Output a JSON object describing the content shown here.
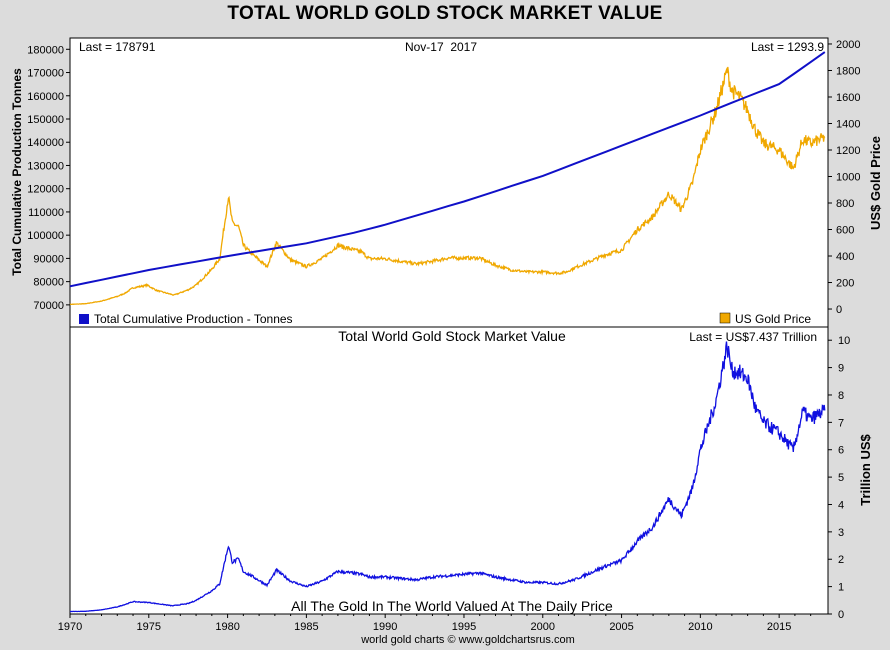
{
  "page": {
    "title": "TOTAL WORLD GOLD STOCK MARKET VALUE",
    "footer": "world gold charts © www.goldchartsrus.com"
  },
  "chart_data": [
    {
      "type": "line",
      "panel": "top",
      "date_label": "Nov-17  2017",
      "last_left": "Last = 178791",
      "last_right": "Last = 1293.9",
      "ylabel_left": "Total Cumulative Production Tonnes",
      "ylabel_right": "US$ Gold Price",
      "yticks_left": [
        70000,
        80000,
        90000,
        100000,
        110000,
        120000,
        130000,
        140000,
        150000,
        160000,
        170000,
        180000
      ],
      "yticks_right": [
        0,
        200,
        400,
        600,
        800,
        1000,
        1200,
        1400,
        1600,
        1800,
        2000
      ],
      "ylim_left": [
        66500,
        184000
      ],
      "ylim_right": [
        -30,
        2030
      ],
      "legend": [
        {
          "name": "Total Cumulative Production - Tonnes",
          "color": "#1010c8",
          "position": "bottom-left"
        },
        {
          "name": "US Gold Price",
          "color": "#f0a800",
          "position": "bottom-right"
        }
      ],
      "series": [
        {
          "name": "Total Cumulative Production - Tonnes",
          "axis": "left",
          "color": "#1010c8",
          "x": [
            1970,
            1975,
            1980,
            1985,
            1988,
            1990,
            1995,
            2000,
            2005,
            2010,
            2012,
            2015,
            2017.9
          ],
          "values": [
            78000,
            85000,
            91000,
            96500,
            101000,
            104500,
            114500,
            125500,
            138500,
            151500,
            157000,
            165000,
            178791
          ]
        },
        {
          "name": "US Gold Price",
          "axis": "right",
          "color": "#f0a800",
          "x": [
            1970,
            1971,
            1972,
            1973,
            1973.5,
            1974,
            1974.9,
            1975.5,
            1976.6,
            1977.5,
            1978,
            1979,
            1979.5,
            1980.05,
            1980.3,
            1980.7,
            1981,
            1981.5,
            1982.5,
            1983.1,
            1984,
            1985,
            1986,
            1987,
            1987.9,
            1988.5,
            1989,
            1990,
            1991,
            1992,
            1993,
            1994,
            1995,
            1996,
            1997,
            1998,
            1999,
            2000,
            2001,
            2001.5,
            2002,
            2003,
            2004,
            2005,
            2006,
            2007,
            2008,
            2008.8,
            2009.5,
            2010,
            2011,
            2011.7,
            2012,
            2012.5,
            2013,
            2013.5,
            2014,
            2015,
            2015.9,
            2016.5,
            2017,
            2017.9
          ],
          "values": [
            35,
            40,
            60,
            95,
            120,
            160,
            180,
            140,
            105,
            145,
            180,
            300,
            380,
            850,
            650,
            620,
            480,
            420,
            320,
            500,
            370,
            320,
            380,
            480,
            450,
            430,
            380,
            380,
            360,
            340,
            360,
            385,
            385,
            385,
            330,
            295,
            280,
            280,
            270,
            280,
            310,
            360,
            410,
            445,
            600,
            700,
            870,
            750,
            950,
            1200,
            1500,
            1800,
            1650,
            1600,
            1500,
            1350,
            1250,
            1200,
            1060,
            1280,
            1250,
            1293.9
          ]
        }
      ]
    },
    {
      "type": "line",
      "panel": "bottom",
      "title": "Total World Gold Stock Market Value",
      "last": "Last = US$7.437 Trillion",
      "caption": "All The Gold In The World Valued At The Daily Price",
      "ylabel_right": "Trillion US$",
      "yticks": [
        0,
        1,
        2,
        3,
        4,
        5,
        6,
        7,
        8,
        9,
        10
      ],
      "ylim": [
        0,
        10.3
      ],
      "xticks": [
        1970,
        1975,
        1980,
        1985,
        1990,
        1995,
        2000,
        2005,
        2010,
        2015
      ],
      "xlim": [
        1970,
        2018.1
      ],
      "series": [
        {
          "name": "Total World Gold Stock Market Value",
          "color": "#1010e0",
          "x": [
            1970,
            1971,
            1972,
            1973,
            1973.5,
            1974,
            1975,
            1976.5,
            1977.5,
            1978,
            1979,
            1979.5,
            1980.05,
            1980.3,
            1980.7,
            1981,
            1981.5,
            1982.5,
            1983.1,
            1984,
            1985,
            1986,
            1987,
            1987.9,
            1988.5,
            1989,
            1990,
            1991,
            1992,
            1993,
            1994,
            1995,
            1996,
            1997,
            1998,
            1999,
            2000,
            2001,
            2002,
            2003,
            2004,
            2005,
            2006,
            2007,
            2008,
            2008.8,
            2009.5,
            2010,
            2011,
            2011.7,
            2012,
            2012.5,
            2013,
            2013.5,
            2014,
            2015,
            2015.9,
            2016.5,
            2017,
            2017.9
          ],
          "values": [
            0.09,
            0.1,
            0.15,
            0.26,
            0.35,
            0.45,
            0.42,
            0.3,
            0.38,
            0.5,
            0.85,
            1.1,
            2.5,
            1.9,
            2.0,
            1.55,
            1.4,
            1.05,
            1.6,
            1.2,
            1.0,
            1.2,
            1.55,
            1.5,
            1.45,
            1.35,
            1.35,
            1.3,
            1.25,
            1.35,
            1.4,
            1.45,
            1.5,
            1.35,
            1.25,
            1.15,
            1.15,
            1.1,
            1.25,
            1.5,
            1.75,
            1.95,
            2.65,
            3.2,
            4.2,
            3.6,
            4.6,
            6.0,
            7.8,
            9.8,
            8.9,
            8.8,
            8.6,
            7.5,
            7.0,
            6.6,
            6.0,
            7.4,
            7.1,
            7.437
          ]
        }
      ]
    }
  ]
}
